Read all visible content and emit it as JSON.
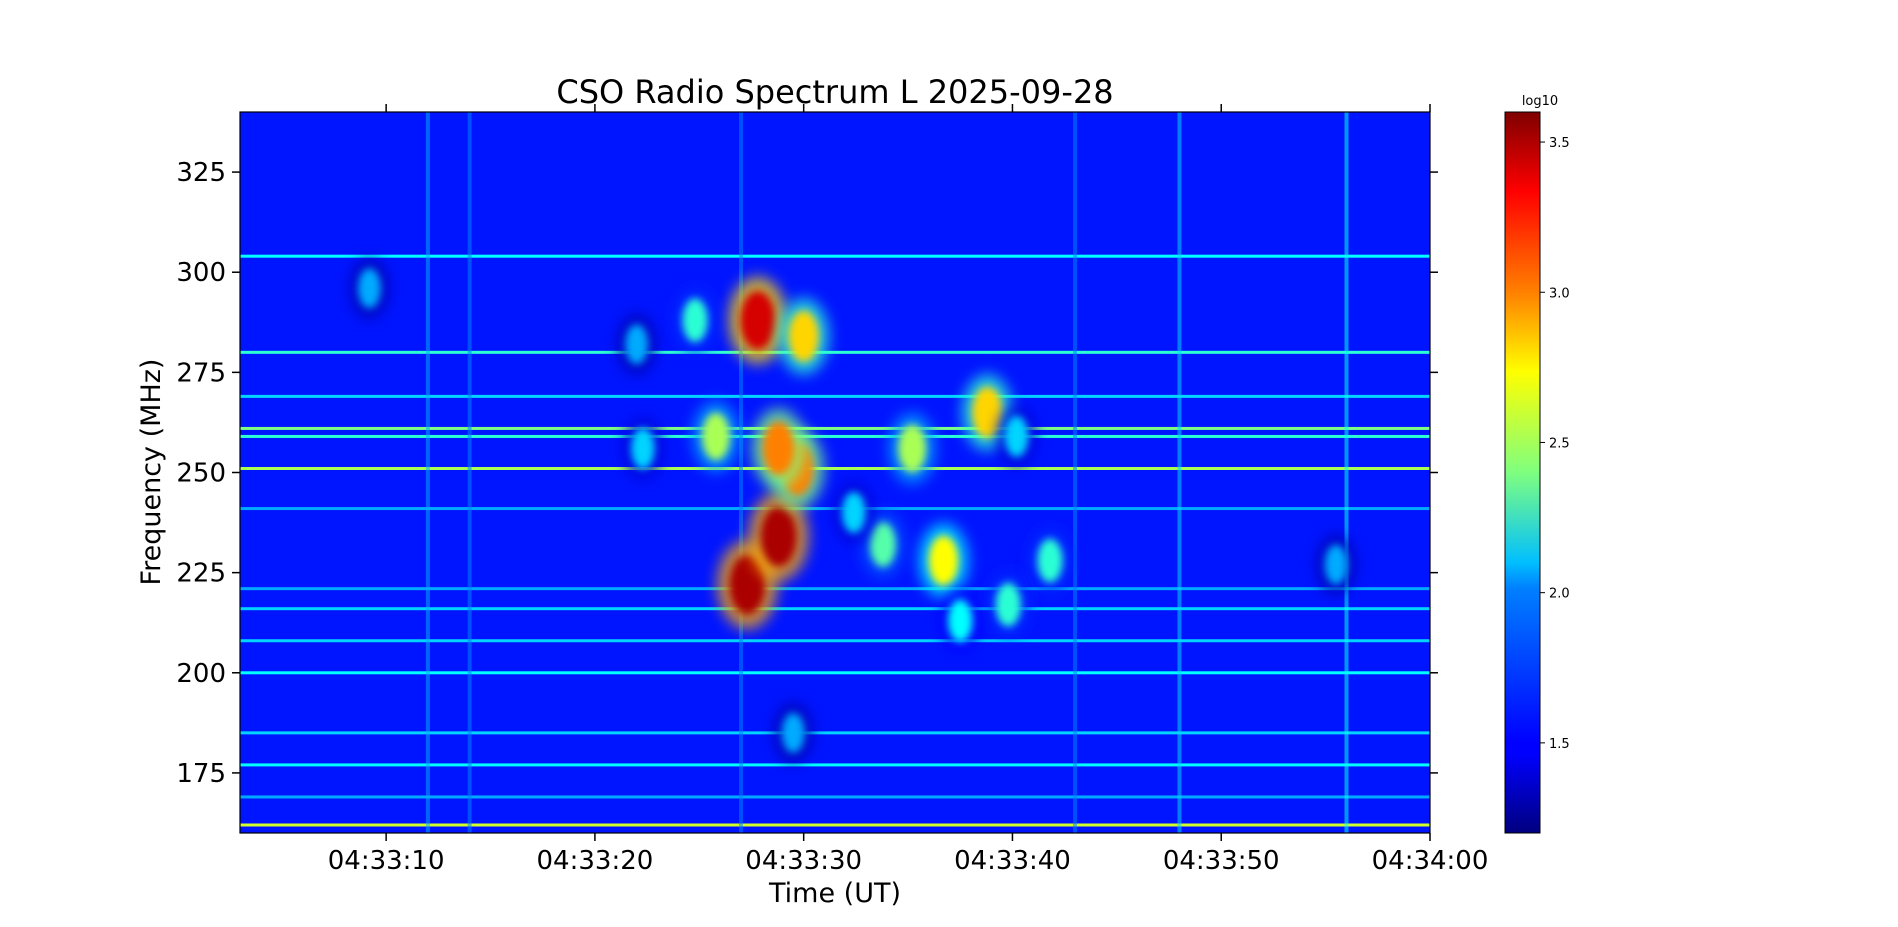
{
  "chart_data": {
    "type": "heatmap",
    "title": "CSO Radio Spectrum L 2025-09-28",
    "xlabel": "Time (UT)",
    "ylabel": "Frequency (MHz)",
    "x_range": [
      "04:33:03",
      "04:34:00"
    ],
    "x_ticks": [
      "04:33:10",
      "04:33:20",
      "04:33:30",
      "04:33:40",
      "04:33:50",
      "04:34:00"
    ],
    "ylim": [
      160,
      340
    ],
    "y_ticks": [
      175,
      200,
      225,
      250,
      275,
      300,
      325
    ],
    "colorbar": {
      "label": "log10",
      "colormap": "jet",
      "range": [
        1.2,
        3.6
      ],
      "ticks": [
        "1.5",
        "2.0",
        "2.5",
        "3.0",
        "3.5"
      ]
    },
    "background_level": 1.55,
    "horizontal_lines": [
      {
        "freq": 304,
        "level": 2.1
      },
      {
        "freq": 280,
        "level": 2.2
      },
      {
        "freq": 269,
        "level": 2.0
      },
      {
        "freq": 261,
        "level": 2.4
      },
      {
        "freq": 259,
        "level": 2.2
      },
      {
        "freq": 251,
        "level": 2.5
      },
      {
        "freq": 241,
        "level": 1.9
      },
      {
        "freq": 221,
        "level": 1.9
      },
      {
        "freq": 216,
        "level": 2.0
      },
      {
        "freq": 208,
        "level": 2.0
      },
      {
        "freq": 200,
        "level": 2.1
      },
      {
        "freq": 185,
        "level": 2.0
      },
      {
        "freq": 177,
        "level": 2.1
      },
      {
        "freq": 169,
        "level": 1.9
      },
      {
        "freq": 162,
        "level": 2.6
      }
    ],
    "vertical_bands": [
      {
        "time": "04:33:12",
        "level": 1.9
      },
      {
        "time": "04:33:14",
        "level": 1.8
      },
      {
        "time": "04:33:27",
        "level": 1.8
      },
      {
        "time": "04:33:43",
        "level": 1.8
      },
      {
        "time": "04:33:48",
        "level": 2.0
      },
      {
        "time": "04:33:56",
        "level": 2.1
      }
    ],
    "bursts": [
      {
        "time": "04:33:27.3",
        "freq": 222,
        "level": 3.5
      },
      {
        "time": "04:33:28.8",
        "freq": 234,
        "level": 3.5
      },
      {
        "time": "04:33:27.8",
        "freq": 288,
        "level": 3.4
      },
      {
        "time": "04:33:29.7",
        "freq": 251,
        "level": 3.0
      },
      {
        "time": "04:33:28.8",
        "freq": 256,
        "level": 3.0
      },
      {
        "time": "04:33:30.0",
        "freq": 284,
        "level": 2.8
      },
      {
        "time": "04:33:25.8",
        "freq": 259,
        "level": 2.5
      },
      {
        "time": "04:33:36.7",
        "freq": 228,
        "level": 2.7
      },
      {
        "time": "04:33:38.8",
        "freq": 265,
        "level": 2.8
      },
      {
        "time": "04:33:35.2",
        "freq": 256,
        "level": 2.5
      },
      {
        "time": "04:33:33.8",
        "freq": 232,
        "level": 2.3
      },
      {
        "time": "04:33:41.8",
        "freq": 228,
        "level": 2.2
      },
      {
        "time": "04:33:39.8",
        "freq": 217,
        "level": 2.2
      },
      {
        "time": "04:33:37.5",
        "freq": 213,
        "level": 2.1
      },
      {
        "time": "04:33:24.8",
        "freq": 288,
        "level": 2.2
      },
      {
        "time": "04:33:22.3",
        "freq": 256,
        "level": 2.0
      },
      {
        "time": "04:33:40.2",
        "freq": 259,
        "level": 2.0
      },
      {
        "time": "04:33:32.4",
        "freq": 240,
        "level": 2.0
      },
      {
        "time": "04:33:22.0",
        "freq": 282,
        "level": 1.9
      },
      {
        "time": "04:33:09.2",
        "freq": 296,
        "level": 1.9
      },
      {
        "time": "04:33:55.5",
        "freq": 227,
        "level": 1.9
      },
      {
        "time": "04:33:29.5",
        "freq": 185,
        "level": 1.9
      }
    ]
  }
}
